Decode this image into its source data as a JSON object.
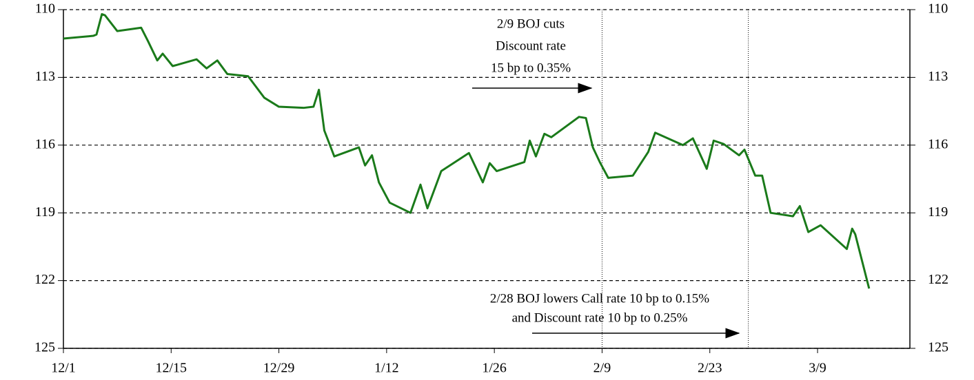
{
  "chart_data": {
    "type": "line",
    "annotations": [
      "2/9 BOJ cuts",
      "Discount rate",
      "15 bp to 0.35%",
      "2/28 BOJ lowers Call rate 10 bp to 0.15%",
      "and Discount rate 10 bp to 0.25%"
    ],
    "x": [
      0,
      3.9,
      4.3,
      5,
      5.4,
      7,
      10.1,
      11,
      12.2,
      12.9,
      14.2,
      17.3,
      18.6,
      20,
      21.3,
      24,
      26.1,
      28,
      31.2,
      32.5,
      33.2,
      33.9,
      35.2,
      38.4,
      39.2,
      40.1,
      41,
      42.4,
      45.1,
      46.4,
      47.3,
      49.1,
      52.7,
      54.5,
      55.4,
      56.3,
      59.9,
      60.6,
      61.4,
      62.5,
      63.4,
      67,
      67.9,
      68.8,
      69.7,
      70.8,
      74,
      76,
      76.9,
      80.5,
      81.8,
      83.6,
      84.5,
      85.8,
      87.8,
      88.5,
      89.9,
      90.8,
      91.9,
      94.8,
      95.7,
      96.8,
      98.4,
      101.8,
      102.5,
      102.9,
      104.7
    ],
    "series": [
      {
        "color": "#1a7a1a",
        "values": [
          111.28,
          111.16,
          111.1,
          110.2,
          110.25,
          110.95,
          110.8,
          111.4,
          112.25,
          111.95,
          112.5,
          112.2,
          112.6,
          112.25,
          112.85,
          112.95,
          113.9,
          114.3,
          114.35,
          114.3,
          113.55,
          115.35,
          116.5,
          116.1,
          116.9,
          116.45,
          117.65,
          118.55,
          119.0,
          117.75,
          118.8,
          117.15,
          116.35,
          117.65,
          116.8,
          117.15,
          116.75,
          115.8,
          116.5,
          115.5,
          115.65,
          114.75,
          114.8,
          116.1,
          116.75,
          117.45,
          117.35,
          116.3,
          115.45,
          116.0,
          115.7,
          117.05,
          115.8,
          115.95,
          116.45,
          116.2,
          117.35,
          117.35,
          119.0,
          119.15,
          118.7,
          119.85,
          119.55,
          120.6,
          119.7,
          119.95,
          122.35
        ]
      }
    ],
    "event_lines": [
      70,
      89
    ],
    "xlim": [
      0,
      110
    ],
    "xticks": [
      {
        "value": 0,
        "label": "12/1"
      },
      {
        "value": 14,
        "label": "12/15"
      },
      {
        "value": 28,
        "label": "12/29"
      },
      {
        "value": 42,
        "label": "1/12"
      },
      {
        "value": 56,
        "label": "1/26"
      },
      {
        "value": 70,
        "label": "2/9"
      },
      {
        "value": 84,
        "label": "2/23"
      },
      {
        "value": 98,
        "label": "3/9"
      }
    ],
    "ylim": [
      110,
      125
    ],
    "yticks": [
      110,
      113,
      116,
      119,
      122,
      125
    ],
    "y_inverted": true,
    "grid": true
  }
}
